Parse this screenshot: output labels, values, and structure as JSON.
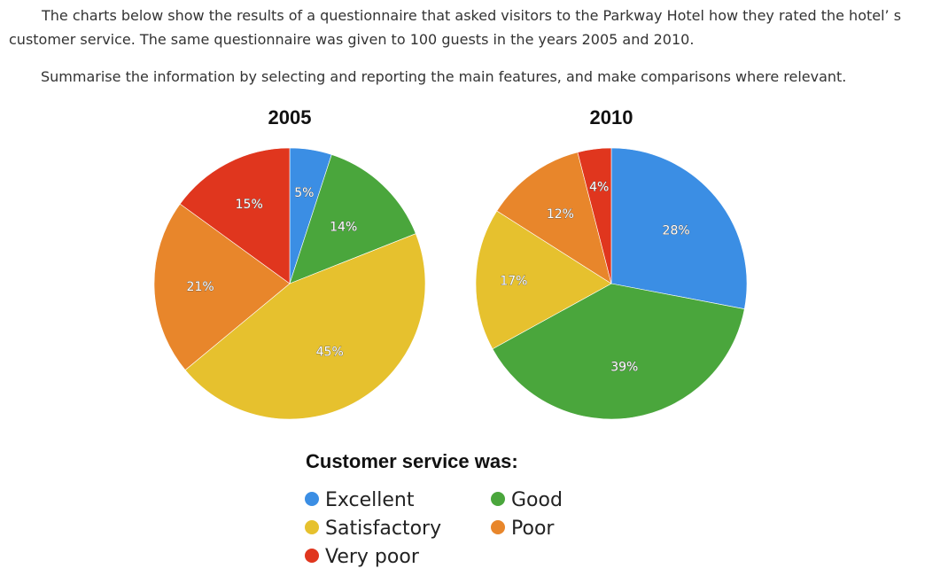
{
  "intro": {
    "paragraph1": "The charts below show the results of a questionnaire that asked visitors to the Parkway Hotel how they rated the hotel’ s customer service. The same questionnaire was given to 100 guests in the years 2005 and 2010.",
    "paragraph2": "Summarise the information by selecting and reporting the main features, and make comparisons where relevant."
  },
  "chart_data": [
    {
      "type": "pie",
      "title": "2005",
      "slices": [
        {
          "category": "Excellent",
          "value": 5,
          "label": "5%"
        },
        {
          "category": "Good",
          "value": 14,
          "label": "14%"
        },
        {
          "category": "Satisfactory",
          "value": 45,
          "label": "45%"
        },
        {
          "category": "Poor",
          "value": 21,
          "label": "21%"
        },
        {
          "category": "Very poor",
          "value": 15,
          "label": "15%"
        }
      ]
    },
    {
      "type": "pie",
      "title": "2010",
      "slices": [
        {
          "category": "Excellent",
          "value": 28,
          "label": "28%"
        },
        {
          "category": "Good",
          "value": 39,
          "label": "39%"
        },
        {
          "category": "Satisfactory",
          "value": 17,
          "label": "17%"
        },
        {
          "category": "Poor",
          "value": 12,
          "label": "12%"
        },
        {
          "category": "Very poor",
          "value": 4,
          "label": "4%"
        }
      ]
    }
  ],
  "legend": {
    "title": "Customer service was:",
    "items": [
      {
        "label": "Excellent",
        "color": "#3b8ee4"
      },
      {
        "label": "Good",
        "color": "#4aa63c"
      },
      {
        "label": "Satisfactory",
        "color": "#e6c12e"
      },
      {
        "label": "Poor",
        "color": "#e8862b"
      },
      {
        "label": "Very poor",
        "color": "#e0361e"
      }
    ]
  },
  "colors": {
    "Excellent": "#3b8ee4",
    "Good": "#4aa63c",
    "Satisfactory": "#e6c12e",
    "Poor": "#e8862b",
    "Very poor": "#e0361e"
  }
}
